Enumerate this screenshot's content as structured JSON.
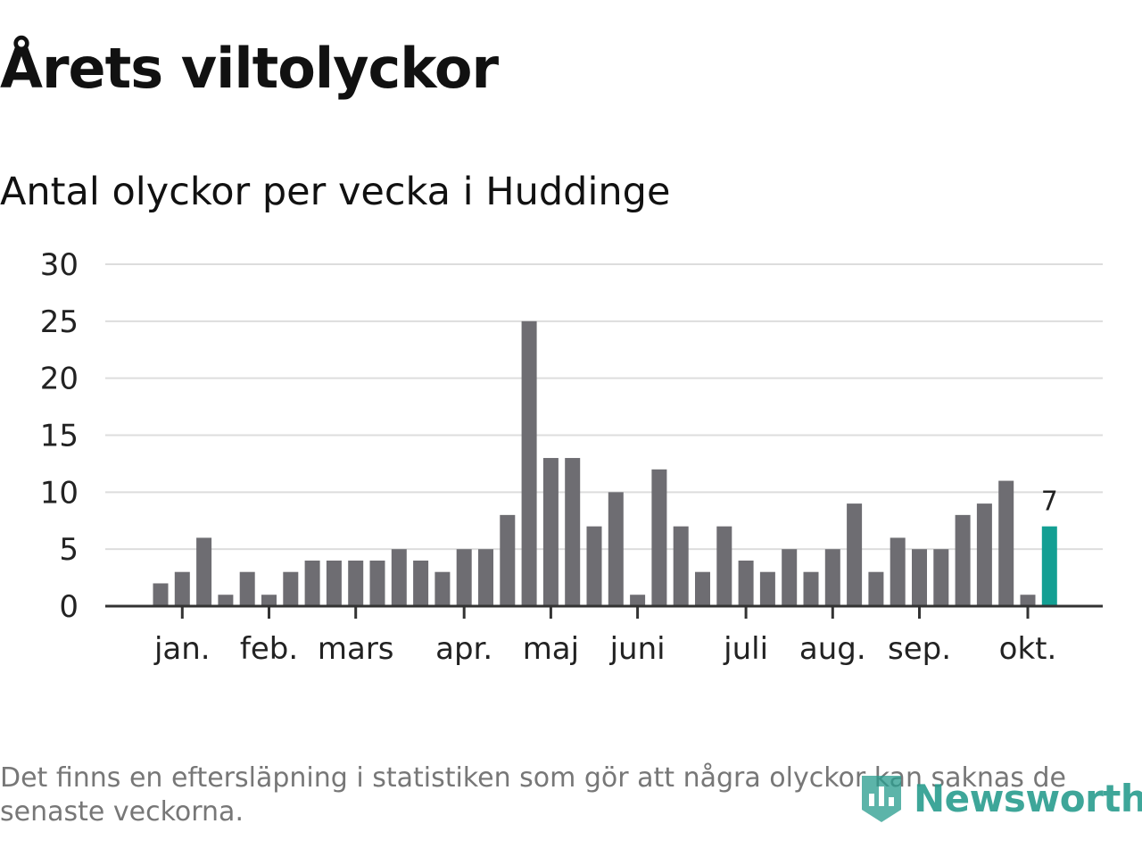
{
  "chart_data": {
    "type": "bar",
    "title": "Årets viltolyckor",
    "subtitle": "Antal olyckor per vecka i Huddinge",
    "xlabel": "",
    "ylabel": "",
    "ylim": [
      0,
      30
    ],
    "yticks": [
      "0",
      "5",
      "10",
      "15",
      "20",
      "25",
      "30"
    ],
    "grid": true,
    "month_labels": [
      {
        "label": "jan.",
        "week": 2
      },
      {
        "label": "feb.",
        "week": 6
      },
      {
        "label": "mars",
        "week": 10
      },
      {
        "label": "apr.",
        "week": 15
      },
      {
        "label": "maj",
        "week": 19
      },
      {
        "label": "juni",
        "week": 23
      },
      {
        "label": "juli",
        "week": 28
      },
      {
        "label": "aug.",
        "week": 32
      },
      {
        "label": "sep.",
        "week": 36
      },
      {
        "label": "okt.",
        "week": 41
      }
    ],
    "values": [
      2,
      3,
      6,
      1,
      3,
      1,
      3,
      4,
      4,
      4,
      4,
      5,
      4,
      3,
      5,
      5,
      8,
      25,
      13,
      13,
      7,
      10,
      1,
      12,
      7,
      3,
      7,
      4,
      3,
      5,
      3,
      5,
      9,
      3,
      6,
      5,
      5,
      8,
      9,
      11,
      1,
      7
    ],
    "highlight_last_label": "7",
    "colors": {
      "bar": "#6e6d72",
      "highlight": "#139f93",
      "grid": "#dddddd",
      "axis": "#333333"
    }
  },
  "footnote": "Det finns en eftersläpning i statistiken som gör att några olyckor kan saknas de senaste veckorna.",
  "logo": {
    "text": "Newsworthy",
    "icon": "newsworthy-logo-icon"
  }
}
